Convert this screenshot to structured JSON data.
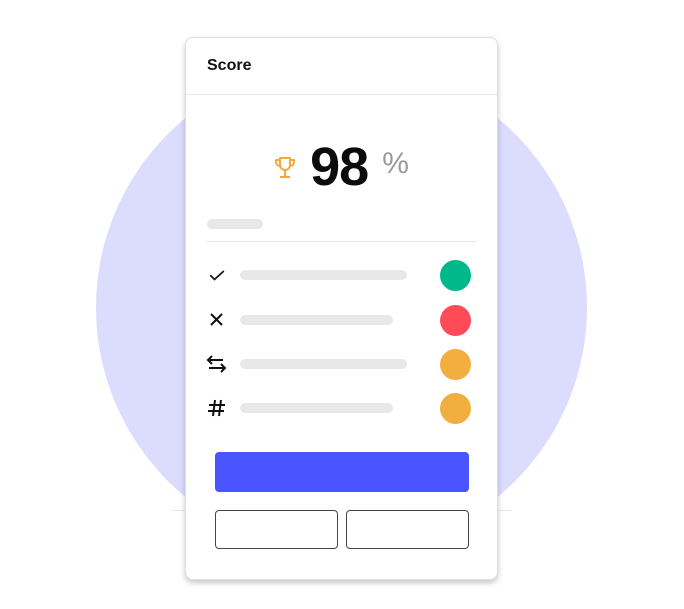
{
  "colors": {
    "background_circle": "#dcdcff",
    "accent": "#4a55ff",
    "success": "#00b88a",
    "error": "#ff4b58",
    "warning": "#f2ae3f",
    "trophy": "#f2a93b"
  },
  "card": {
    "title": "Score",
    "score": {
      "icon": "trophy-icon",
      "value": "98",
      "unit": "%"
    },
    "rows": [
      {
        "icon": "check-icon",
        "status_color": "#00b88a"
      },
      {
        "icon": "x-icon",
        "status_color": "#ff4b58"
      },
      {
        "icon": "swap-arrows-icon",
        "status_color": "#f2ae3f"
      },
      {
        "icon": "hash-icon",
        "status_color": "#f2ae3f"
      }
    ]
  }
}
